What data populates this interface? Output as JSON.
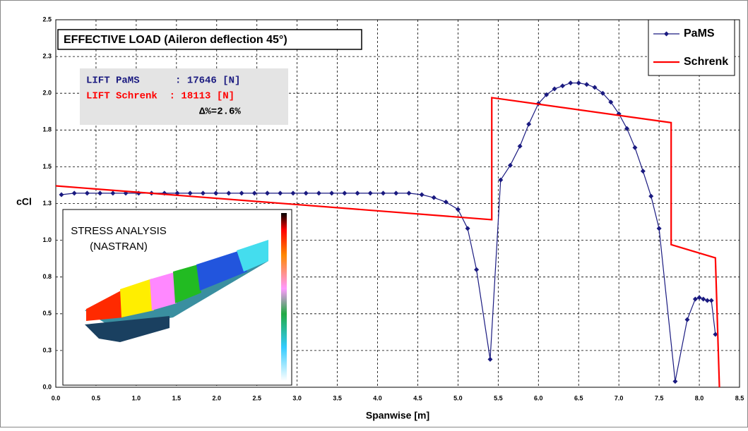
{
  "chart_data": {
    "type": "line",
    "title": "EFFECTIVE LOAD (Aileron deflection 45°)",
    "xlabel": "Spanwise [m]",
    "ylabel": "cCl",
    "xlim": [
      0,
      8.5
    ],
    "ylim": [
      0,
      2.5
    ],
    "xticks": [
      {
        "value": 0,
        "label": "0.0"
      },
      {
        "value": 0.5,
        "label": "0.5"
      },
      {
        "value": 1,
        "label": "1.0"
      },
      {
        "value": 1.5,
        "label": "1.5"
      },
      {
        "value": 2,
        "label": "2.0"
      },
      {
        "value": 2.5,
        "label": "2.5"
      },
      {
        "value": 3,
        "label": "3.0"
      },
      {
        "value": 3.5,
        "label": "3.5"
      },
      {
        "value": 4,
        "label": "4.0"
      },
      {
        "value": 4.5,
        "label": "4.5"
      },
      {
        "value": 5,
        "label": "5.0"
      },
      {
        "value": 5.5,
        "label": "5.5"
      },
      {
        "value": 6,
        "label": "6.0"
      },
      {
        "value": 6.5,
        "label": "6.5"
      },
      {
        "value": 7,
        "label": "7.0"
      },
      {
        "value": 7.5,
        "label": "7.5"
      },
      {
        "value": 8,
        "label": "8.0"
      },
      {
        "value": 8.5,
        "label": "8.5"
      }
    ],
    "yticks": [
      {
        "value": 0,
        "label": "0.0"
      },
      {
        "value": 0.25,
        "label": "0.3"
      },
      {
        "value": 0.5,
        "label": "0.5"
      },
      {
        "value": 0.75,
        "label": "0.8"
      },
      {
        "value": 1,
        "label": "1.0"
      },
      {
        "value": 1.25,
        "label": "1.3"
      },
      {
        "value": 1.5,
        "label": "1.5"
      },
      {
        "value": 1.75,
        "label": "1.8"
      },
      {
        "value": 2,
        "label": "2.0"
      },
      {
        "value": 2.25,
        "label": "2.3"
      },
      {
        "value": 2.5,
        "label": "2.5"
      }
    ],
    "grid": true,
    "legend_position": "upper right",
    "series": [
      {
        "name": "PaMS",
        "color": "#1a1a80",
        "x": [
          0.07,
          0.23,
          0.39,
          0.55,
          0.71,
          0.87,
          1.03,
          1.19,
          1.35,
          1.51,
          1.67,
          1.83,
          1.99,
          2.15,
          2.31,
          2.47,
          2.63,
          2.79,
          2.95,
          3.11,
          3.27,
          3.43,
          3.59,
          3.75,
          3.91,
          4.07,
          4.23,
          4.39,
          4.55,
          4.7,
          4.85,
          5.0,
          5.12,
          5.23,
          5.4,
          5.53,
          5.65,
          5.77,
          5.88,
          6.0,
          6.1,
          6.2,
          6.3,
          6.4,
          6.5,
          6.6,
          6.7,
          6.8,
          6.9,
          7.0,
          7.1,
          7.2,
          7.3,
          7.4,
          7.5,
          7.7,
          7.85,
          7.95,
          8.0,
          8.05,
          8.1,
          8.15,
          8.2
        ],
        "values": [
          1.31,
          1.32,
          1.32,
          1.32,
          1.32,
          1.32,
          1.32,
          1.32,
          1.32,
          1.32,
          1.32,
          1.32,
          1.32,
          1.32,
          1.32,
          1.32,
          1.32,
          1.32,
          1.32,
          1.32,
          1.32,
          1.32,
          1.32,
          1.32,
          1.32,
          1.32,
          1.32,
          1.32,
          1.31,
          1.29,
          1.26,
          1.21,
          1.08,
          0.8,
          0.19,
          1.41,
          1.51,
          1.64,
          1.79,
          1.93,
          1.99,
          2.03,
          2.05,
          2.07,
          2.07,
          2.06,
          2.04,
          2.0,
          1.94,
          1.86,
          1.76,
          1.63,
          1.47,
          1.3,
          1.08,
          0.04,
          0.46,
          0.6,
          0.61,
          0.6,
          0.59,
          0.59,
          0.36
        ]
      },
      {
        "name": "Schrenk",
        "color": "#ff0000",
        "x": [
          0,
          5.42,
          5.42,
          7.65,
          7.65,
          8.2,
          8.25
        ],
        "values": [
          1.37,
          1.14,
          1.97,
          1.8,
          0.97,
          0.88,
          0
        ]
      }
    ],
    "annotations": {
      "lift_pams": "LIFT PaMS      : 17646 [N]",
      "lift_schrenk": "LIFT Schrenk  : 18113 [N]",
      "delta": "Δ%=2.6%"
    },
    "inset": {
      "title": "STRESS ANALYSIS",
      "subtitle": "(NASTRAN)"
    }
  }
}
